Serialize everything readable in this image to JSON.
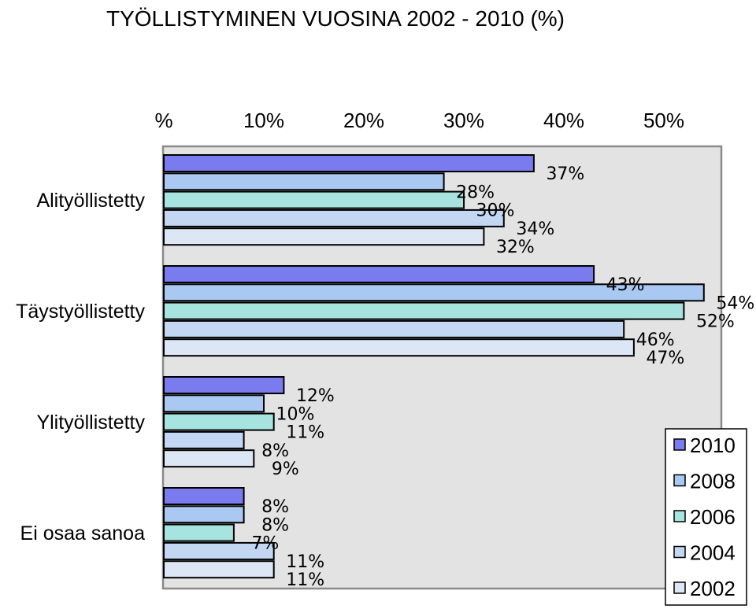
{
  "chart_data": {
    "type": "bar",
    "orientation": "horizontal",
    "title": "TYÖLLISTYMINEN VUOSINA 2002 - 2010 (%)",
    "xlabel": "",
    "ylabel": "",
    "xlim": [
      0,
      54
    ],
    "x_ticks": [
      "%",
      "10%",
      "20%",
      "30%",
      "40%",
      "50%"
    ],
    "x_axis_position": "top",
    "grid": false,
    "legend_position": "bottom-right",
    "categories": [
      "Alityöllistetty",
      "Täystyöllistetty",
      "Ylityöllistetty",
      "Ei osaa sanoa"
    ],
    "series": [
      {
        "name": "2010",
        "color": "#7b7bf0",
        "values": [
          37,
          43,
          12,
          8
        ],
        "labels": [
          "37%",
          "43%",
          "12%",
          "8%"
        ]
      },
      {
        "name": "2008",
        "color": "#a9c8f2",
        "values": [
          28,
          54,
          10,
          8
        ],
        "labels": [
          "28%",
          "54%",
          "10%",
          "8%"
        ]
      },
      {
        "name": "2006",
        "color": "#a8e4df",
        "values": [
          30,
          52,
          11,
          7
        ],
        "labels": [
          "30%",
          "52%",
          "11%",
          "7%"
        ]
      },
      {
        "name": "2004",
        "color": "#c3d6f2",
        "values": [
          34,
          46,
          8,
          11
        ],
        "labels": [
          "34%",
          "46%",
          "8%",
          "11%"
        ]
      },
      {
        "name": "2002",
        "color": "#dce6f4",
        "values": [
          32,
          47,
          9,
          11
        ],
        "labels": [
          "32%",
          "47%",
          "9%",
          "11%"
        ]
      }
    ]
  }
}
